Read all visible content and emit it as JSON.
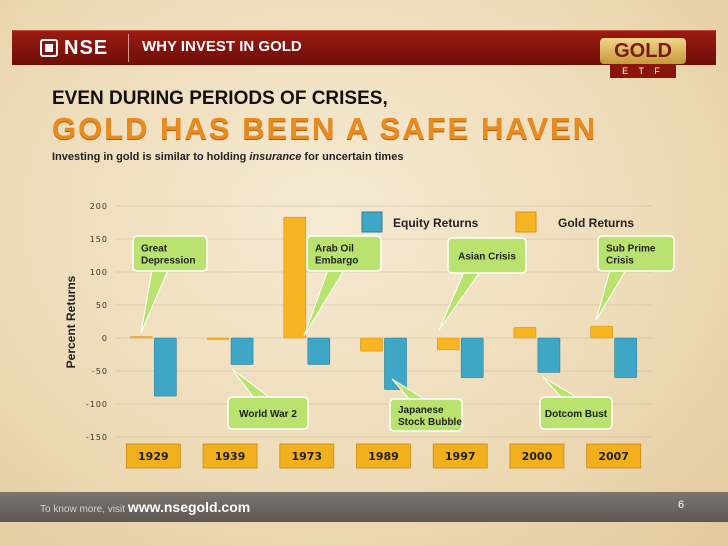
{
  "header": {
    "brand": "NSE",
    "title": "WHY INVEST IN GOLD"
  },
  "badge": {
    "top": "GOLD",
    "bottom": "E T F"
  },
  "heading": {
    "line1": "EVEN DURING PERIODS OF CRISES,",
    "line2": "GOLD HAS BEEN A SAFE HAVEN",
    "sub_pre": "Investing in gold is similar to holding ",
    "sub_em": "insurance",
    "sub_post": " for uncertain times"
  },
  "footer": {
    "prefix": "To know more, visit",
    "url": "www.nsegold.com",
    "page": "6"
  },
  "colors": {
    "equity": "#3fa7c6",
    "gold": "#f7b423",
    "callout": "#b9e26e"
  },
  "chart_data": {
    "type": "bar",
    "title": "",
    "ylabel": "Percent Returns",
    "ylim": [
      -150,
      200
    ],
    "yticks": [
      -150,
      -100,
      -50,
      0,
      50,
      100,
      150,
      200
    ],
    "grid": true,
    "legend": "top-right",
    "categories": [
      "1929",
      "1939",
      "1973",
      "1989",
      "1997",
      "2000",
      "2007"
    ],
    "series": [
      {
        "name": "Equity Returns",
        "values": [
          -88,
          -40,
          -40,
          -78,
          -60,
          -52,
          -60
        ]
      },
      {
        "name": "Gold Returns",
        "values": [
          2,
          -2,
          183,
          -20,
          -18,
          16,
          18
        ]
      }
    ],
    "annotations": [
      {
        "text": [
          "Great",
          "Depression"
        ],
        "category": "1929"
      },
      {
        "text": [
          "World War 2"
        ],
        "category": "1939"
      },
      {
        "text": [
          "Arab Oil",
          "Embargo"
        ],
        "category": "1973"
      },
      {
        "text": [
          "Japanese",
          "Stock Bubble"
        ],
        "category": "1989"
      },
      {
        "text": [
          "Asian Crisis"
        ],
        "category": "1997"
      },
      {
        "text": [
          "Dotcom Bust"
        ],
        "category": "2000"
      },
      {
        "text": [
          "Sub Prime",
          "Crisis"
        ],
        "category": "2007"
      }
    ]
  }
}
